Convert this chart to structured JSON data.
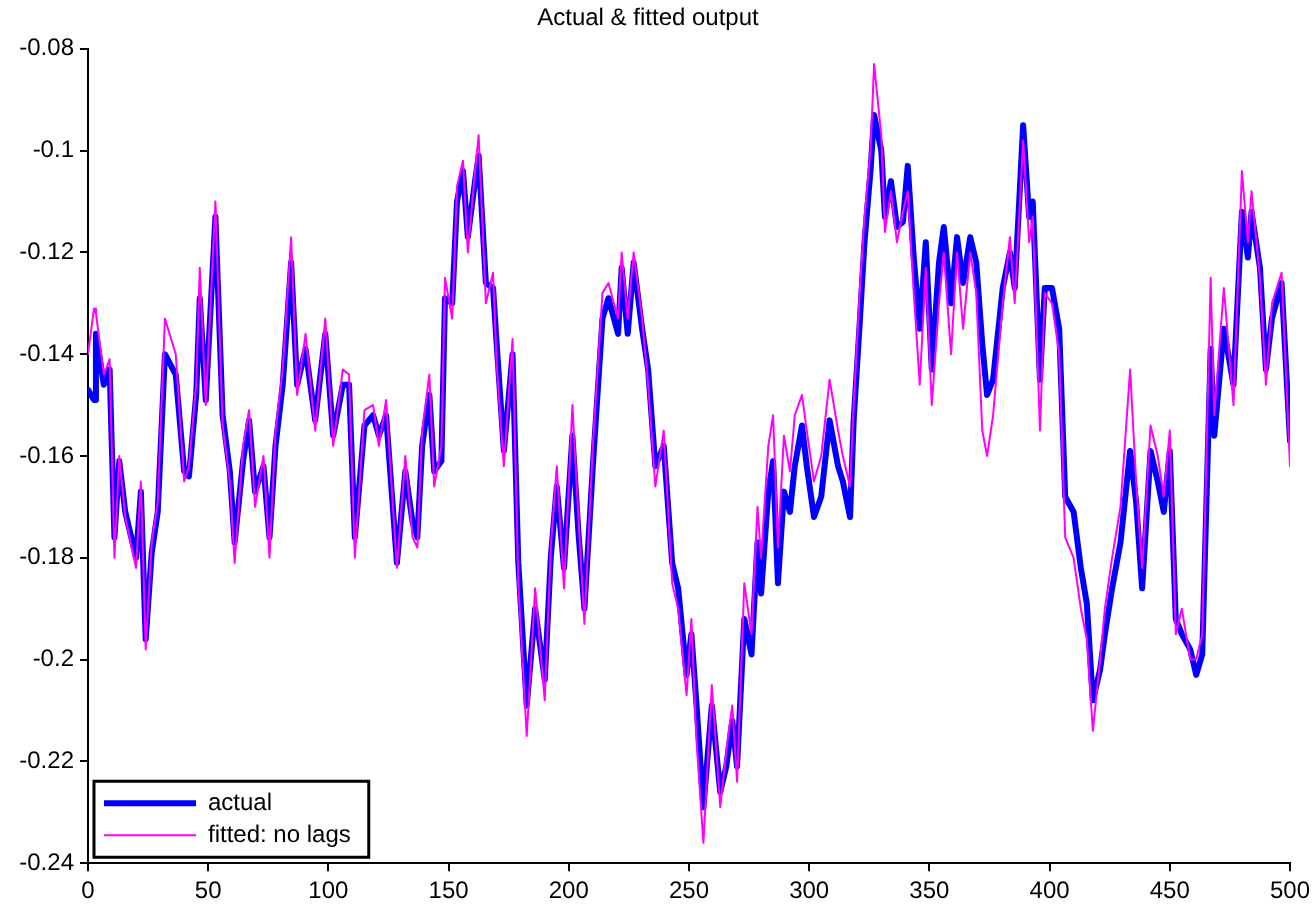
{
  "chart_data": {
    "type": "line",
    "title": "Actual & fitted output",
    "x": [
      0,
      2.5,
      3.3,
      6.6,
      9,
      11,
      13,
      15.5,
      20,
      22,
      24,
      26.5,
      29,
      32,
      36.5,
      40,
      42,
      45,
      46.5,
      49,
      53,
      56,
      59,
      61,
      64.5,
      67,
      69.5,
      73,
      75.5,
      78,
      81,
      84.5,
      87,
      90.5,
      94.5,
      98.7,
      102,
      106,
      108.6,
      111,
      115,
      118.6,
      121,
      124,
      128.5,
      132,
      135,
      137,
      139,
      142,
      144,
      147,
      148.5,
      151.5,
      153.5,
      156,
      158,
      161,
      162.5,
      165.5,
      168.5,
      170,
      173,
      176.6,
      179,
      182.5,
      186,
      190,
      192.5,
      195,
      198,
      201.5,
      204,
      206.5,
      210,
      214,
      216.5,
      220.5,
      222,
      224.5,
      227,
      230.5,
      233,
      236,
      239.5,
      243,
      245.5,
      249,
      251,
      253,
      256,
      259.5,
      263,
      265.5,
      268,
      270,
      273,
      276,
      278.5,
      280,
      283,
      285,
      287,
      289.5,
      292,
      294,
      297,
      299,
      302,
      305,
      308.5,
      312,
      314,
      317,
      318.5,
      321,
      323,
      325.5,
      327,
      330,
      331.5,
      334,
      336.5,
      339,
      341,
      343.5,
      346,
      348.5,
      351,
      354,
      356,
      359,
      361.5,
      364,
      367,
      369.5,
      372,
      374,
      376.5,
      380.5,
      383.5,
      385.5,
      389,
      391.5,
      393,
      396,
      398,
      401,
      404,
      406.5,
      410,
      413,
      415.5,
      418,
      421,
      423,
      426,
      429.5,
      433.5,
      436,
      438.5,
      442,
      445,
      447.5,
      450,
      452.5,
      455,
      458.5,
      461,
      463.5,
      467,
      468.5,
      472.5,
      476.5,
      480,
      482.5,
      484,
      487.5,
      490,
      492.5,
      496.5,
      500
    ],
    "series": [
      {
        "name": "actual",
        "color": "#0000ff",
        "values": [
          -0.147,
          -0.149,
          -0.136,
          -0.146,
          -0.143,
          -0.176,
          -0.161,
          -0.171,
          -0.18,
          -0.167,
          -0.196,
          -0.179,
          -0.171,
          -0.14,
          -0.144,
          -0.163,
          -0.164,
          -0.148,
          -0.129,
          -0.149,
          -0.113,
          -0.152,
          -0.163,
          -0.177,
          -0.161,
          -0.153,
          -0.167,
          -0.162,
          -0.176,
          -0.158,
          -0.146,
          -0.122,
          -0.146,
          -0.139,
          -0.153,
          -0.136,
          -0.156,
          -0.146,
          -0.146,
          -0.176,
          -0.154,
          -0.152,
          -0.156,
          -0.152,
          -0.181,
          -0.163,
          -0.173,
          -0.176,
          -0.158,
          -0.148,
          -0.163,
          -0.161,
          -0.129,
          -0.13,
          -0.11,
          -0.104,
          -0.117,
          -0.106,
          -0.101,
          -0.126,
          -0.127,
          -0.138,
          -0.159,
          -0.14,
          -0.181,
          -0.209,
          -0.19,
          -0.204,
          -0.18,
          -0.166,
          -0.182,
          -0.156,
          -0.175,
          -0.19,
          -0.162,
          -0.133,
          -0.129,
          -0.136,
          -0.123,
          -0.136,
          -0.122,
          -0.135,
          -0.143,
          -0.162,
          -0.158,
          -0.181,
          -0.186,
          -0.203,
          -0.195,
          -0.208,
          -0.229,
          -0.209,
          -0.226,
          -0.221,
          -0.212,
          -0.221,
          -0.192,
          -0.199,
          -0.177,
          -0.187,
          -0.167,
          -0.161,
          -0.185,
          -0.167,
          -0.171,
          -0.162,
          -0.154,
          -0.162,
          -0.172,
          -0.168,
          -0.153,
          -0.162,
          -0.165,
          -0.172,
          -0.153,
          -0.134,
          -0.118,
          -0.104,
          -0.093,
          -0.1,
          -0.113,
          -0.106,
          -0.115,
          -0.114,
          -0.103,
          -0.121,
          -0.135,
          -0.118,
          -0.143,
          -0.122,
          -0.115,
          -0.13,
          -0.117,
          -0.126,
          -0.117,
          -0.122,
          -0.138,
          -0.148,
          -0.145,
          -0.127,
          -0.12,
          -0.127,
          -0.095,
          -0.113,
          -0.11,
          -0.145,
          -0.127,
          -0.127,
          -0.135,
          -0.168,
          -0.171,
          -0.182,
          -0.189,
          -0.208,
          -0.202,
          -0.195,
          -0.186,
          -0.177,
          -0.159,
          -0.169,
          -0.186,
          -0.159,
          -0.165,
          -0.171,
          -0.159,
          -0.192,
          -0.195,
          -0.198,
          -0.203,
          -0.199,
          -0.139,
          -0.156,
          -0.135,
          -0.146,
          -0.112,
          -0.121,
          -0.112,
          -0.123,
          -0.143,
          -0.133,
          -0.126,
          -0.157
        ]
      },
      {
        "name": "fitted: no lags",
        "color": "#ff00ff",
        "values": [
          -0.14,
          -0.131,
          -0.132,
          -0.144,
          -0.141,
          -0.18,
          -0.16,
          -0.172,
          -0.182,
          -0.165,
          -0.198,
          -0.177,
          -0.169,
          -0.133,
          -0.14,
          -0.165,
          -0.162,
          -0.146,
          -0.123,
          -0.15,
          -0.11,
          -0.154,
          -0.165,
          -0.181,
          -0.158,
          -0.151,
          -0.17,
          -0.16,
          -0.18,
          -0.155,
          -0.143,
          -0.117,
          -0.148,
          -0.136,
          -0.155,
          -0.133,
          -0.158,
          -0.143,
          -0.144,
          -0.18,
          -0.151,
          -0.15,
          -0.158,
          -0.149,
          -0.182,
          -0.16,
          -0.176,
          -0.178,
          -0.155,
          -0.144,
          -0.166,
          -0.158,
          -0.125,
          -0.133,
          -0.107,
          -0.102,
          -0.12,
          -0.104,
          -0.097,
          -0.13,
          -0.124,
          -0.142,
          -0.162,
          -0.137,
          -0.185,
          -0.215,
          -0.186,
          -0.208,
          -0.178,
          -0.162,
          -0.186,
          -0.15,
          -0.172,
          -0.193,
          -0.158,
          -0.128,
          -0.126,
          -0.133,
          -0.12,
          -0.133,
          -0.12,
          -0.133,
          -0.146,
          -0.166,
          -0.155,
          -0.185,
          -0.19,
          -0.207,
          -0.192,
          -0.215,
          -0.236,
          -0.205,
          -0.229,
          -0.218,
          -0.209,
          -0.224,
          -0.185,
          -0.195,
          -0.17,
          -0.18,
          -0.158,
          -0.152,
          -0.178,
          -0.156,
          -0.163,
          -0.152,
          -0.148,
          -0.155,
          -0.165,
          -0.16,
          -0.145,
          -0.155,
          -0.16,
          -0.166,
          -0.15,
          -0.128,
          -0.113,
          -0.1,
          -0.083,
          -0.097,
          -0.116,
          -0.108,
          -0.118,
          -0.112,
          -0.108,
          -0.128,
          -0.146,
          -0.123,
          -0.15,
          -0.13,
          -0.12,
          -0.14,
          -0.12,
          -0.135,
          -0.12,
          -0.128,
          -0.155,
          -0.16,
          -0.152,
          -0.13,
          -0.117,
          -0.13,
          -0.098,
          -0.118,
          -0.113,
          -0.155,
          -0.128,
          -0.13,
          -0.14,
          -0.176,
          -0.18,
          -0.19,
          -0.196,
          -0.214,
          -0.2,
          -0.19,
          -0.18,
          -0.17,
          -0.143,
          -0.165,
          -0.182,
          -0.154,
          -0.16,
          -0.168,
          -0.155,
          -0.195,
          -0.19,
          -0.2,
          -0.2,
          -0.195,
          -0.125,
          -0.152,
          -0.127,
          -0.15,
          -0.104,
          -0.118,
          -0.108,
          -0.125,
          -0.146,
          -0.13,
          -0.124,
          -0.162
        ]
      }
    ],
    "xlim": [
      0,
      500
    ],
    "xticks": [
      0,
      50,
      100,
      150,
      200,
      250,
      300,
      350,
      400,
      450,
      500
    ],
    "ylim": [
      -0.24,
      -0.08
    ],
    "yticks": [
      -0.24,
      -0.22,
      -0.2,
      -0.18,
      -0.16,
      -0.14,
      -0.12,
      -0.1,
      -0.08
    ],
    "grid": false,
    "legend": "bottom left",
    "marker": "none",
    "line_style": "solid"
  }
}
